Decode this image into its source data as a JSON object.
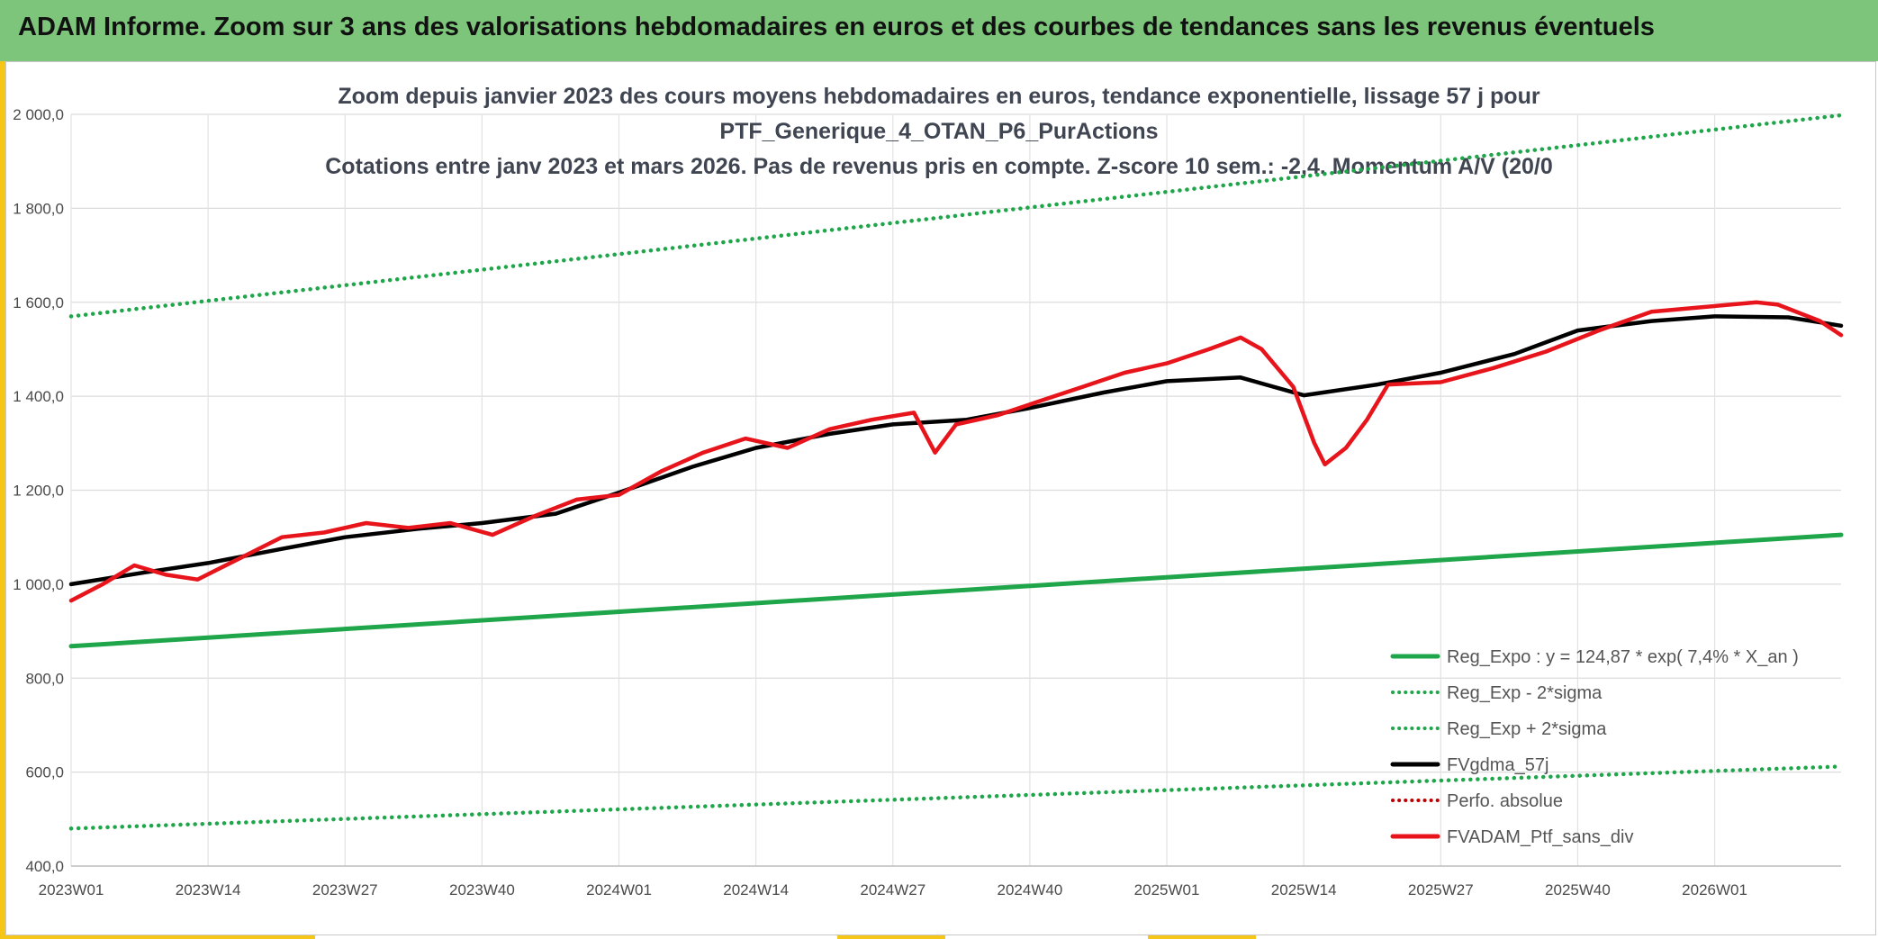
{
  "header": {
    "title": "ADAM Informe. Zoom sur 3 ans des valorisations hebdomadaires en euros et des courbes de tendances sans les revenus éventuels"
  },
  "colors": {
    "header_bg": "#7dc57a",
    "accent": "#f5c518",
    "trend": "#1fa64a",
    "smooth": "#000000",
    "price": "#e8141b",
    "perf": "#c00000"
  },
  "chart_data": {
    "type": "line",
    "title_lines": [
      "Zoom depuis janvier 2023 des cours moyens hebdomadaires en euros, tendance exponentielle, lissage 57 j pour",
      "PTF_Generique_4_OTAN_P6_PurActions",
      "Cotations entre janv 2023 et mars 2026. Pas de revenus pris en compte. Z-score 10 sem.: -2,4. Momentum A/V (20/0"
    ],
    "xlabel": "",
    "ylabel": "",
    "ylim": [
      400,
      2000
    ],
    "y_ticks": [
      "400,0",
      "600,0",
      "800,0",
      "1 000,0",
      "1 200,0",
      "1 400,0",
      "1 600,0",
      "1 800,0",
      "2 000,0"
    ],
    "x_ticks": [
      "2023W01",
      "2023W14",
      "2023W27",
      "2023W40",
      "2024W01",
      "2024W14",
      "2024W27",
      "2024W40",
      "2025W01",
      "2025W14",
      "2025W27",
      "2025W40",
      "2026W01"
    ],
    "grid": true,
    "legend_position": "bottom-right",
    "legend": [
      {
        "label": "Reg_Expo : y = 124,87 * exp( 7,4% *  X_an )",
        "style": "solid",
        "color": "#1fa64a"
      },
      {
        "label": "Reg_Exp - 2*sigma",
        "style": "dotted",
        "color": "#1fa64a"
      },
      {
        "label": "Reg_Exp + 2*sigma",
        "style": "dotted",
        "color": "#1fa64a"
      },
      {
        "label": "FVgdma_57j",
        "style": "solid",
        "color": "#000000"
      },
      {
        "label": "Perfo. absolue",
        "style": "dotted",
        "color": "#c00000"
      },
      {
        "label": "FVADAM_Ptf_sans_div",
        "style": "solid",
        "color": "#e8141b"
      }
    ],
    "series": [
      {
        "name": "Reg_Expo : y = 124,87 * exp( 7,4% *  X_an )",
        "x": [
          0,
          168
        ],
        "values": [
          868,
          1105
        ]
      },
      {
        "name": "Reg_Exp - 2*sigma",
        "x": [
          0,
          168
        ],
        "values": [
          480,
          612
        ]
      },
      {
        "name": "Reg_Exp + 2*sigma",
        "x": [
          0,
          168
        ],
        "values": [
          1570,
          1998
        ]
      },
      {
        "name": "FVgdma_57j",
        "x": [
          0,
          7,
          13,
          20,
          26,
          33,
          39,
          46,
          52,
          59,
          65,
          72,
          78,
          85,
          91,
          98,
          104,
          111,
          117,
          124,
          130,
          137,
          143,
          150,
          156,
          163,
          168
        ],
        "values": [
          1000,
          1025,
          1045,
          1075,
          1100,
          1118,
          1130,
          1150,
          1195,
          1250,
          1290,
          1320,
          1340,
          1350,
          1375,
          1408,
          1432,
          1440,
          1402,
          1425,
          1450,
          1490,
          1540,
          1560,
          1570,
          1568,
          1550
        ]
      },
      {
        "name": "FVADAM_Ptf_sans_div",
        "x": [
          0,
          3,
          6,
          9,
          12,
          16,
          20,
          24,
          28,
          32,
          36,
          40,
          44,
          48,
          52,
          56,
          60,
          64,
          68,
          72,
          76,
          80,
          82,
          84,
          88,
          92,
          96,
          100,
          104,
          108,
          111,
          113,
          116,
          118,
          119,
          121,
          123,
          125,
          130,
          135,
          140,
          145,
          150,
          155,
          160,
          162,
          166,
          168
        ],
        "values": [
          965,
          1000,
          1040,
          1020,
          1010,
          1055,
          1100,
          1110,
          1130,
          1120,
          1130,
          1105,
          1145,
          1180,
          1190,
          1240,
          1280,
          1310,
          1290,
          1330,
          1350,
          1365,
          1280,
          1340,
          1360,
          1390,
          1420,
          1450,
          1470,
          1500,
          1525,
          1500,
          1420,
          1300,
          1255,
          1290,
          1350,
          1425,
          1430,
          1460,
          1495,
          1540,
          1580,
          1590,
          1600,
          1595,
          1560,
          1530
        ]
      }
    ]
  }
}
